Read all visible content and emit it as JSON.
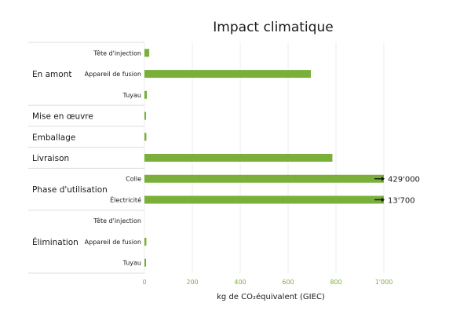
{
  "chart_data": {
    "type": "bar",
    "orientation": "horizontal",
    "title": "Impact climatique",
    "xlabel": "kg de CO₂équivalent (GIEC)",
    "ylabel": "",
    "xlim": [
      0,
      1000
    ],
    "xticks": [
      "0",
      "200",
      "400",
      "600",
      "800",
      "1'000"
    ],
    "bar_color": "#7ab03a",
    "grid": true,
    "groups": [
      {
        "name": "En amont",
        "items": [
          {
            "label": "Tête d'injection",
            "value": 20
          },
          {
            "label": "Appareil de fusion",
            "value": 695
          },
          {
            "label": "Tuyau",
            "value": 10
          }
        ]
      },
      {
        "name": "Mise en œuvre",
        "items": [
          {
            "label": "",
            "value": 5
          }
        ]
      },
      {
        "name": "Emballage",
        "items": [
          {
            "label": "",
            "value": 8
          }
        ]
      },
      {
        "name": "Livraison",
        "items": [
          {
            "label": "",
            "value": 785
          }
        ]
      },
      {
        "name": "Phase d'utilisation",
        "items": [
          {
            "label": "Colle",
            "value": 429000,
            "annotation": "429'000"
          },
          {
            "label": "Électricité",
            "value": 13700,
            "annotation": "13'700"
          }
        ]
      },
      {
        "name": "Élimination",
        "items": [
          {
            "label": "Tête d'injection",
            "value": 0
          },
          {
            "label": "Appareil de fusion",
            "value": 8
          },
          {
            "label": "Tuyau",
            "value": 3
          }
        ]
      }
    ]
  }
}
